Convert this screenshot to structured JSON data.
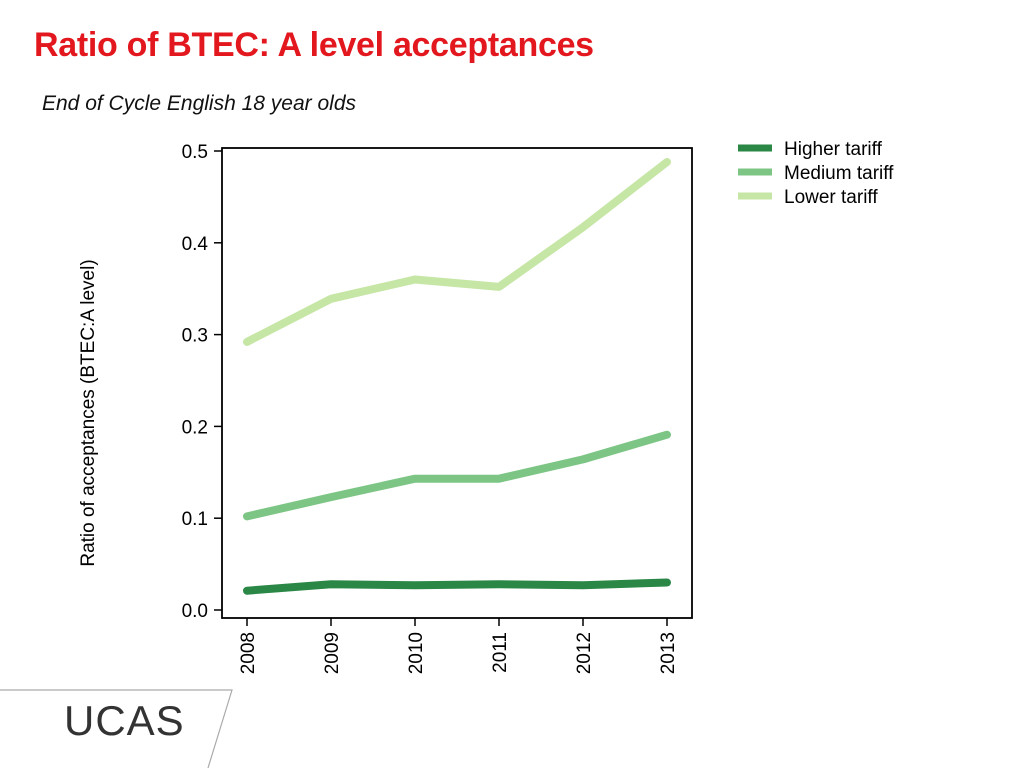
{
  "slide": {
    "title": "Ratio of BTEC: A level acceptances",
    "subtitle": "End of Cycle English 18 year olds",
    "logo_text": "UCAS"
  },
  "chart_data": {
    "type": "line",
    "title": "",
    "xlabel": "",
    "ylabel": "Ratio of acceptances (BTEC:A level)",
    "x": [
      "2008",
      "2009",
      "2010",
      "2011",
      "2012",
      "2013"
    ],
    "ylim": [
      0.0,
      0.5
    ],
    "yticks": [
      "0.0",
      "0.1",
      "0.2",
      "0.3",
      "0.4",
      "0.5"
    ],
    "grid": false,
    "legend_position": "top-right outside plot",
    "series": [
      {
        "name": "Higher tariff",
        "color": "#2a8746",
        "values": [
          0.021,
          0.028,
          0.027,
          0.028,
          0.027,
          0.03
        ]
      },
      {
        "name": "Medium tariff",
        "color": "#7cc584",
        "values": [
          0.102,
          0.123,
          0.143,
          0.143,
          0.164,
          0.191
        ]
      },
      {
        "name": "Lower tariff",
        "color": "#c5e6a4",
        "values": [
          0.292,
          0.339,
          0.36,
          0.352,
          0.417,
          0.488
        ]
      }
    ]
  }
}
